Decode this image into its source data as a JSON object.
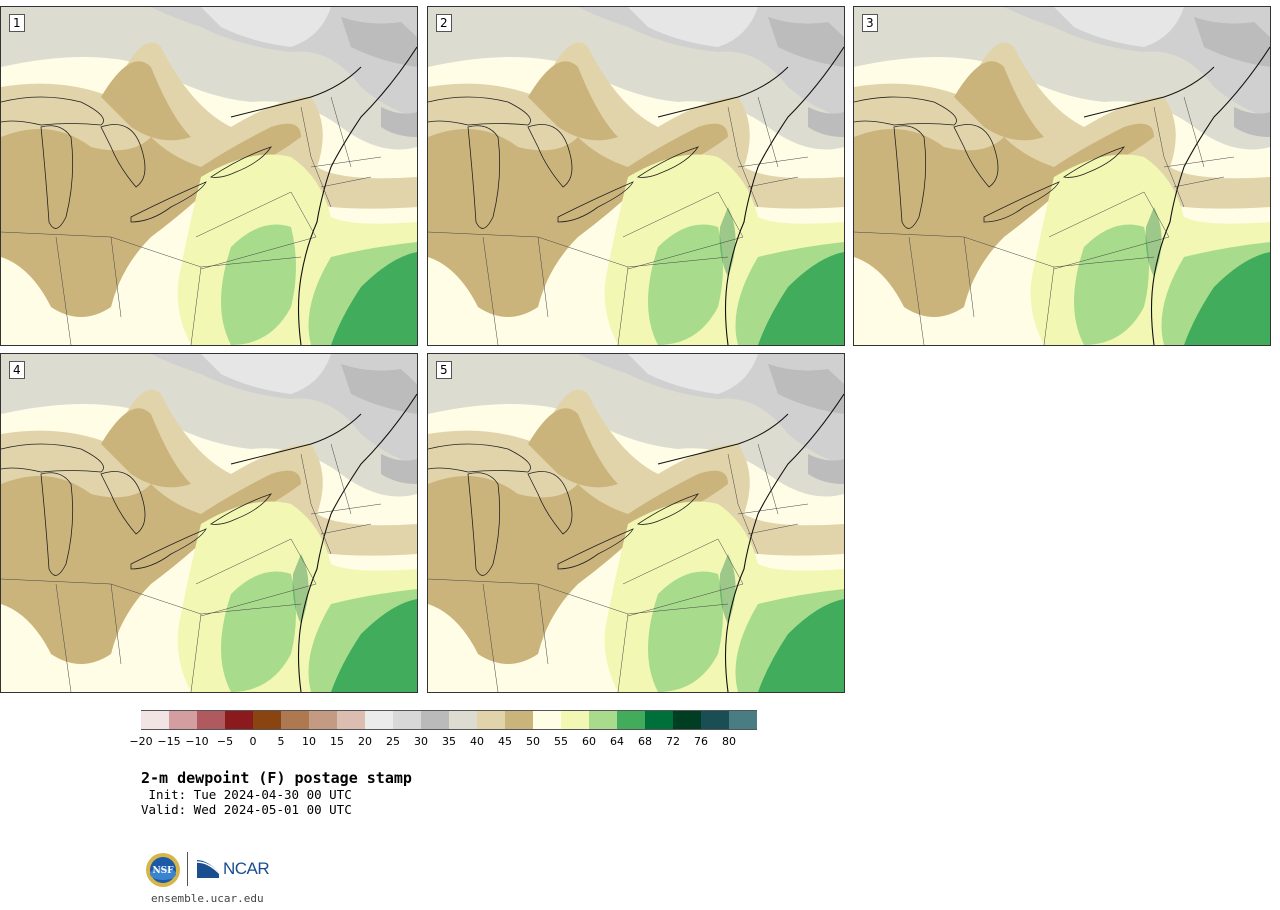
{
  "panels": [
    {
      "label": "1"
    },
    {
      "label": "2"
    },
    {
      "label": "3"
    },
    {
      "label": "4"
    },
    {
      "label": "5"
    }
  ],
  "colorbar": {
    "ticks": [
      "−20",
      "−15",
      "−10",
      "−5",
      "0",
      "5",
      "10",
      "15",
      "20",
      "25",
      "30",
      "35",
      "40",
      "45",
      "50",
      "55",
      "60",
      "64",
      "68",
      "72",
      "76",
      "80"
    ],
    "colors": [
      "#f2e4e4",
      "#d49ea0",
      "#b05a60",
      "#8b1a1e",
      "#8a4412",
      "#ae7850",
      "#c49a82",
      "#dcbeb0",
      "#ebebeb",
      "#d8d8d8",
      "#bababa",
      "#dcdcd0",
      "#e2d4aa",
      "#cbb47c",
      "#fffde6",
      "#f2f8b4",
      "#a8dc8c",
      "#40ac5c",
      "#00703a",
      "#003e24",
      "#1a4e55",
      "#4a7c84"
    ]
  },
  "title": "2-m dewpoint (F) postage stamp",
  "init": " Init: Tue 2024-04-30 00 UTC",
  "valid": "Valid: Wed 2024-05-01 00 UTC",
  "logos": {
    "ncar": "NCAR",
    "nsf": "NSF"
  },
  "url": "ensemble.ucar.edu"
}
